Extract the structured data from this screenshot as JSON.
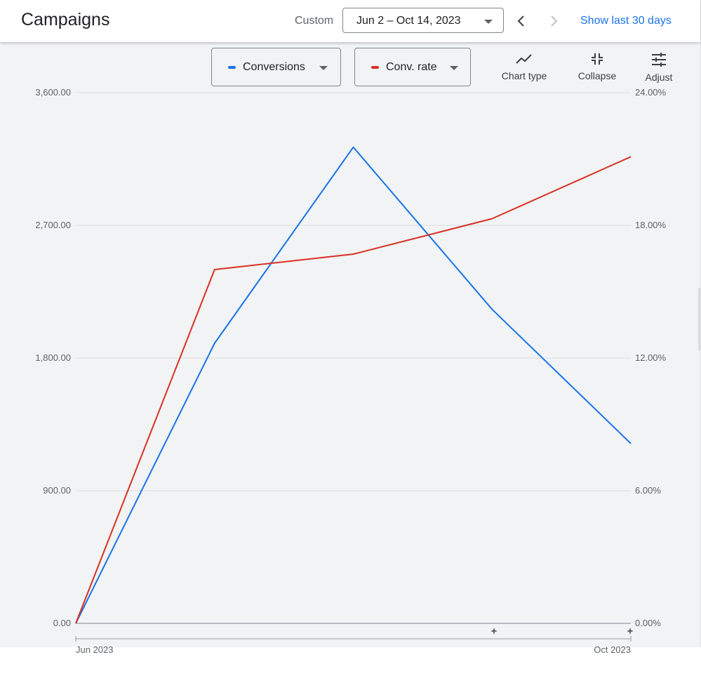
{
  "header": {
    "title": "Campaigns",
    "range_label": "Custom",
    "date_range": "Jun 2 – Oct 14, 2023",
    "show_last": "Show last 30 days"
  },
  "metrics": [
    {
      "label": "Conversions",
      "color": "#1a73e8"
    },
    {
      "label": "Conv. rate",
      "color": "#d93025"
    }
  ],
  "toolbar": {
    "chart_type": "Chart type",
    "collapse": "Collapse",
    "adjust": "Adjust"
  },
  "icons": {
    "prev": "chevron-left-icon",
    "next": "chevron-right-icon",
    "chart_type": "line-chart-icon",
    "collapse": "collapse-icon",
    "adjust": "tune-icon",
    "annotation": "sparkle-icon"
  },
  "chart_data": {
    "type": "line",
    "x_labels": [
      "Jun 2023",
      "Oct 2023"
    ],
    "left_axis": {
      "ticks": [
        "0.00",
        "900.00",
        "1,800.00",
        "2,700.00",
        "3,600.00"
      ],
      "range": [
        0,
        3600
      ]
    },
    "right_axis": {
      "ticks": [
        "0.00%",
        "6.00%",
        "12.00%",
        "18.00%",
        "24.00%"
      ],
      "range": [
        0,
        24
      ]
    },
    "grid": true,
    "series": [
      {
        "name": "Conversions",
        "axis": "left",
        "color": "#1a73e8",
        "values": [
          0,
          1900,
          3230,
          2130,
          1220
        ]
      },
      {
        "name": "Conv. rate",
        "axis": "right",
        "color": "#d93025",
        "values": [
          0,
          16.0,
          16.7,
          18.3,
          21.1
        ]
      }
    ]
  }
}
